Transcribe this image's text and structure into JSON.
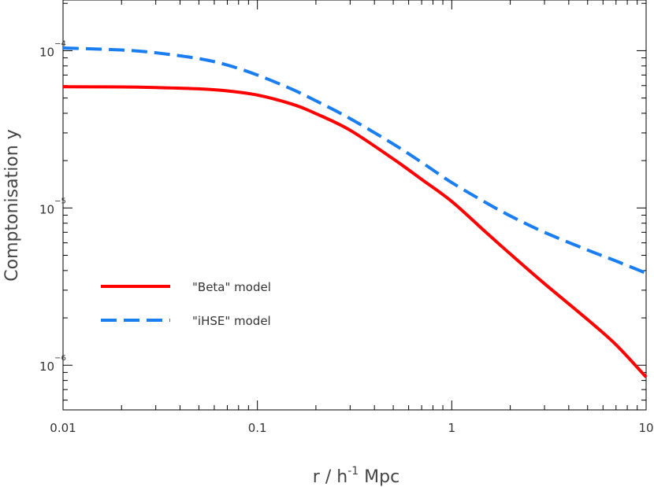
{
  "chart_data": {
    "type": "line",
    "xlabel": "r / h",
    "xlabel_exponent": "-1",
    "xlabel_unit": "Mpc",
    "ylabel": "Comptonisation y",
    "x_scale": "log",
    "y_scale": "log",
    "xlim": [
      0.01,
      10
    ],
    "ylim": [
      5.2e-07,
      0.00021
    ],
    "grid": false,
    "legend_position": "lower-left",
    "x_ticks": [
      {
        "value": 0.01,
        "label": "0.01"
      },
      {
        "value": 0.1,
        "label": "0.1"
      },
      {
        "value": 1,
        "label": "1"
      },
      {
        "value": 10,
        "label": "10"
      }
    ],
    "y_ticks": [
      {
        "value": 1e-06,
        "base": "10",
        "exponent": "−6"
      },
      {
        "value": 1e-05,
        "base": "10",
        "exponent": "−5"
      },
      {
        "value": 0.0001,
        "base": "10",
        "exponent": "−4"
      }
    ],
    "series": [
      {
        "name": "\"Beta\" model",
        "color": "#ff0000",
        "style": "solid",
        "x": [
          0.01,
          0.02,
          0.03,
          0.05,
          0.07,
          0.1,
          0.15,
          0.2,
          0.3,
          0.5,
          0.7,
          1,
          1.5,
          2,
          3,
          5,
          7,
          10
        ],
        "y": [
          5.9e-05,
          5.88e-05,
          5.83e-05,
          5.72e-05,
          5.55e-05,
          5.22e-05,
          4.58e-05,
          3.98e-05,
          3.12e-05,
          2.05e-05,
          1.52e-05,
          1.1e-05,
          7e-06,
          5.1e-06,
          3.3e-06,
          1.95e-06,
          1.35e-06,
          8.4e-07
        ]
      },
      {
        "name": "\"iHSE\" model",
        "color": "#1a7ef0",
        "style": "dashed",
        "x": [
          0.01,
          0.02,
          0.03,
          0.05,
          0.07,
          0.1,
          0.15,
          0.2,
          0.3,
          0.5,
          0.7,
          1,
          1.5,
          2,
          3,
          5,
          7,
          10
        ],
        "y": [
          0.000104,
          0.000101,
          9.7e-05,
          8.9e-05,
          8.1e-05,
          7e-05,
          5.7e-05,
          4.8e-05,
          3.7e-05,
          2.55e-05,
          1.95e-05,
          1.45e-05,
          1.08e-05,
          8.9e-06,
          7e-06,
          5.4e-06,
          4.6e-06,
          3.85e-06
        ]
      }
    ]
  }
}
